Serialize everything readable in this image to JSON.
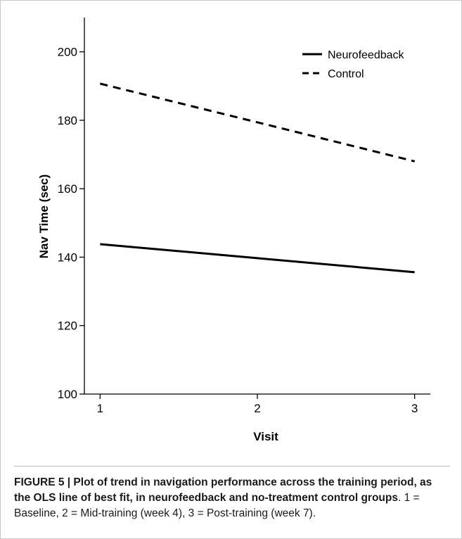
{
  "chart_data": {
    "type": "line",
    "xlabel": "Visit",
    "ylabel": "Nav Time (sec)",
    "x": [
      1,
      2,
      3
    ],
    "xticks": [
      "1",
      "2",
      "3"
    ],
    "xlim": [
      0.9,
      3.1
    ],
    "ylim": [
      100,
      210
    ],
    "yticks": [
      100,
      120,
      140,
      160,
      180,
      200
    ],
    "legend_position": "top-right",
    "grid": false,
    "series": [
      {
        "name": "Neurofeedback",
        "style": "solid",
        "color": "#000000",
        "values": [
          143.8,
          139.7,
          135.6
        ]
      },
      {
        "name": "Control",
        "style": "dashed",
        "color": "#000000",
        "values": [
          190.7,
          179.4,
          168.0
        ]
      }
    ]
  },
  "caption": {
    "label": "FIGURE 5 | Plot of trend in navigation performance across the training period, as the OLS line of best fit, in neurofeedback and no-treatment control groups",
    "body": ". 1 = Baseline, 2 = Mid-training (week 4), 3 = Post-training (week 7)."
  }
}
